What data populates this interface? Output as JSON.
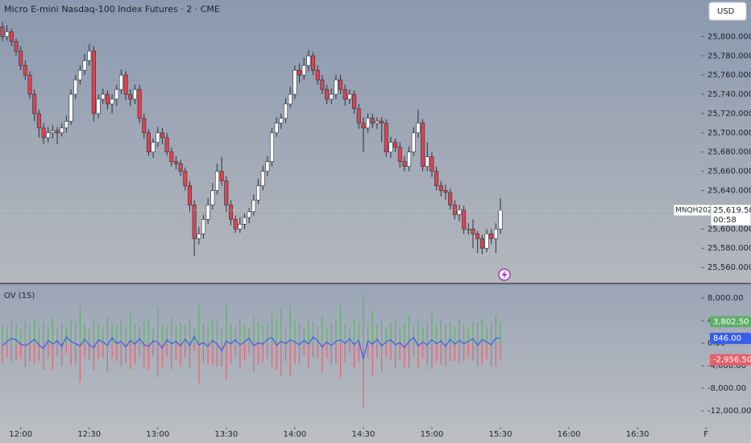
{
  "header": {
    "title": "Micro E-mini Nasdaq-100 Index Futures · 2 · CME",
    "currency": "USD"
  },
  "chart_data": [
    {
      "type": "candlestick",
      "symbol": "MNQH2026",
      "countdown": "00:58",
      "last_label": "25,619.50",
      "up_color": "#ffffff",
      "down_color": "#e0424f",
      "open": [
        25810,
        25800,
        25805,
        25795,
        25785,
        25770,
        25760,
        25740,
        25720,
        25705,
        25695,
        25700,
        25702,
        25700,
        25705,
        25712,
        25740,
        25755,
        25765,
        25775,
        25785,
        25720,
        25735,
        25740,
        25730,
        25735,
        25745,
        25760,
        25740,
        25735,
        25745,
        25715,
        25700,
        25680,
        25690,
        25700,
        25695,
        25680,
        25670,
        25668,
        25660,
        25645,
        25625,
        25590,
        25595,
        25610,
        25625,
        25640,
        25660,
        25650,
        25625,
        25610,
        25600,
        25605,
        25612,
        25618,
        25630,
        25645,
        25660,
        25670,
        25700,
        25710,
        25715,
        25730,
        25740,
        25765,
        25760,
        25770,
        25780,
        25765,
        25755,
        25745,
        25735,
        25740,
        25755,
        25745,
        25735,
        25740,
        25725,
        25710,
        25705,
        25715,
        25710,
        25712,
        25710,
        25680,
        25690,
        25685,
        25670,
        25665,
        25680,
        25700,
        25710,
        25665,
        25675,
        25660,
        25645,
        25640,
        25638,
        25625,
        25615,
        25620,
        25600,
        25600,
        25595,
        25590,
        25580,
        25595,
        25590,
        25600
      ],
      "high": [
        25815,
        25812,
        25808,
        25798,
        25790,
        25775,
        25764,
        25745,
        25724,
        25710,
        25706,
        25708,
        25706,
        25710,
        25718,
        25745,
        25760,
        25770,
        25782,
        25792,
        25790,
        25740,
        25746,
        25744,
        25740,
        25750,
        25766,
        25764,
        25745,
        25750,
        25750,
        25720,
        25704,
        25694,
        25706,
        25705,
        25700,
        25685,
        25676,
        25672,
        25664,
        25650,
        25630,
        25602,
        25615,
        25632,
        25648,
        25668,
        25675,
        25655,
        25630,
        25614,
        25612,
        25616,
        25622,
        25636,
        25652,
        25666,
        25676,
        25705,
        25716,
        25720,
        25736,
        25748,
        25770,
        25772,
        25778,
        25786,
        25784,
        25770,
        25760,
        25750,
        25746,
        25760,
        25760,
        25750,
        25745,
        25744,
        25730,
        25716,
        25720,
        25720,
        25716,
        25716,
        25714,
        25696,
        25694,
        25690,
        25676,
        25686,
        25706,
        25724,
        25714,
        25690,
        25680,
        25665,
        25650,
        25646,
        25642,
        25630,
        25625,
        25624,
        25606,
        25610,
        25598,
        25594,
        25600,
        25600,
        25606,
        25632
      ],
      "low": [
        25795,
        25796,
        25790,
        25780,
        25765,
        25755,
        25735,
        25712,
        25695,
        25688,
        25690,
        25694,
        25688,
        25696,
        25700,
        25708,
        25735,
        25750,
        25760,
        25770,
        25712,
        25715,
        25730,
        25724,
        25720,
        25728,
        25740,
        25734,
        25728,
        25730,
        25710,
        25694,
        25676,
        25674,
        25685,
        25688,
        25676,
        25665,
        25662,
        25655,
        25640,
        25618,
        25572,
        25584,
        25590,
        25605,
        25620,
        25636,
        25645,
        25618,
        25604,
        25596,
        25596,
        25600,
        25606,
        25614,
        25626,
        25640,
        25655,
        25665,
        25696,
        25704,
        25710,
        25726,
        25735,
        25752,
        25755,
        25764,
        25760,
        25750,
        25740,
        25730,
        25730,
        25735,
        25740,
        25728,
        25730,
        25720,
        25704,
        25680,
        25700,
        25705,
        25704,
        25690,
        25675,
        25674,
        25680,
        25664,
        25660,
        25660,
        25676,
        25695,
        25660,
        25660,
        25654,
        25640,
        25634,
        25630,
        25620,
        25610,
        25608,
        25595,
        25594,
        25580,
        25575,
        25574,
        25576,
        25584,
        25575,
        25595
      ],
      "close": [
        25800,
        25805,
        25795,
        25785,
        25770,
        25760,
        25740,
        25720,
        25705,
        25695,
        25700,
        25702,
        25700,
        25705,
        25712,
        25740,
        25755,
        25765,
        25775,
        25785,
        25720,
        25735,
        25740,
        25730,
        25735,
        25745,
        25760,
        25740,
        25735,
        25745,
        25715,
        25700,
        25680,
        25690,
        25700,
        25695,
        25680,
        25670,
        25668,
        25660,
        25645,
        25625,
        25590,
        25595,
        25610,
        25625,
        25640,
        25660,
        25650,
        25625,
        25610,
        25600,
        25605,
        25612,
        25618,
        25630,
        25645,
        25660,
        25670,
        25700,
        25710,
        25715,
        25730,
        25740,
        25765,
        25760,
        25770,
        25780,
        25765,
        25755,
        25745,
        25735,
        25740,
        25755,
        25745,
        25735,
        25740,
        25725,
        25710,
        25705,
        25715,
        25710,
        25712,
        25710,
        25680,
        25690,
        25685,
        25670,
        25665,
        25680,
        25700,
        25710,
        25665,
        25675,
        25660,
        25645,
        25640,
        25638,
        25625,
        25615,
        25620,
        25600,
        25600,
        25595,
        25590,
        25580,
        25595,
        25590,
        25600,
        25619.5
      ],
      "ylim": [
        25545,
        25838
      ],
      "yticks": [
        {
          "value": 25560,
          "label": "25,560.000"
        },
        {
          "value": 25580,
          "label": "25,580.000"
        },
        {
          "value": 25600,
          "label": "25,600.000"
        },
        {
          "value": 25620,
          "label": "25,620.000"
        },
        {
          "value": 25640,
          "label": "25,640.000"
        },
        {
          "value": 25660,
          "label": "25,660.000"
        },
        {
          "value": 25680,
          "label": "25,680.000"
        },
        {
          "value": 25700,
          "label": "25,700.000"
        },
        {
          "value": 25720,
          "label": "25,720.000"
        },
        {
          "value": 25740,
          "label": "25,740.000"
        },
        {
          "value": 25760,
          "label": "25,760.000"
        },
        {
          "value": 25780,
          "label": "25,780.000"
        },
        {
          "value": 25800,
          "label": "25,800.000"
        }
      ],
      "xticks": [
        {
          "value": 4,
          "label": "12:00"
        },
        {
          "value": 19,
          "label": "12:30"
        },
        {
          "value": 34,
          "label": "13:00"
        },
        {
          "value": 49,
          "label": "13:30"
        },
        {
          "value": 64,
          "label": "14:00"
        },
        {
          "value": 79,
          "label": "14:30"
        },
        {
          "value": 94,
          "label": "15:00"
        },
        {
          "value": 109,
          "label": "15:30"
        },
        {
          "value": 124,
          "label": "16:00"
        },
        {
          "value": 139,
          "label": "16:30"
        },
        {
          "value": 154,
          "label": "F"
        }
      ]
    },
    {
      "type": "volume-delta",
      "title": "OV (1S)",
      "series": [
        {
          "type": "bar",
          "color": "#5fae6a",
          "last_label": "3,802.50",
          "values": [
            3200,
            2800,
            4100,
            3600,
            2500,
            3900,
            3300,
            4400,
            2900,
            3700,
            3100,
            4600,
            2700,
            3500,
            3000,
            4200,
            3800,
            6400,
            3300,
            2600,
            4000,
            3400,
            2800,
            4700,
            3600,
            3100,
            4300,
            2900,
            5200,
            3500,
            3000,
            3800,
            4100,
            2700,
            6200,
            3400,
            2900,
            4500,
            3200,
            3700,
            3300,
            4000,
            2600,
            6800,
            3500,
            3100,
            4400,
            3900,
            2800,
            6900,
            3600,
            3000,
            4200,
            3300,
            2700,
            4600,
            3800,
            3200,
            3500,
            5100,
            4300,
            6100,
            3100,
            6500,
            3900,
            3400,
            2800,
            4100,
            3600,
            3000,
            4700,
            2900,
            3500,
            4000,
            6700,
            3300,
            2600,
            4200,
            3800,
            8600,
            3100,
            5600,
            3400,
            4500,
            2800,
            3700,
            4100,
            3000,
            3600,
            4800,
            3200,
            4000,
            2900,
            3500,
            5300,
            3100,
            4200,
            3400,
            3800,
            3000,
            4100,
            3300,
            2700,
            3900,
            3600,
            4500,
            3000,
            3800,
            5000,
            3802.5
          ]
        },
        {
          "type": "bar",
          "color": "#e5606a",
          "last_label": "-2,956.50",
          "values": [
            -3700,
            -2500,
            -3300,
            -3000,
            -2700,
            -4300,
            -3300,
            -3700,
            -3200,
            -4700,
            -2600,
            -4800,
            -2300,
            -4100,
            -1900,
            -3900,
            -3900,
            -6900,
            -2600,
            -2900,
            -4800,
            -2800,
            -2600,
            -5100,
            -2600,
            -3200,
            -4000,
            -3600,
            -4700,
            -3700,
            -2200,
            -4100,
            -4700,
            -2300,
            -6000,
            -4300,
            -2300,
            -4600,
            -2900,
            -4200,
            -2600,
            -4400,
            -1400,
            -7100,
            -3400,
            -3700,
            -3900,
            -4100,
            -4200,
            -6500,
            -3700,
            -2400,
            -4500,
            -3100,
            -1800,
            -5100,
            -3700,
            -3400,
            -2800,
            -4100,
            -4700,
            -5800,
            -3200,
            -5900,
            -3700,
            -3700,
            -2300,
            -4300,
            -2500,
            -2600,
            -5400,
            -2700,
            -3900,
            -3700,
            -6100,
            -3400,
            -1800,
            -4500,
            -3300,
            -11400,
            -2700,
            -5800,
            -2700,
            -5000,
            -2600,
            -3100,
            -4400,
            -2900,
            -4400,
            -4500,
            -2200,
            -4500,
            -2700,
            -3800,
            -4700,
            -3200,
            -3800,
            -4000,
            -3100,
            -3200,
            -3600,
            -3400,
            -2400,
            -3100,
            -4000,
            -3900,
            -2800,
            -4100,
            -4100,
            -2956.5
          ]
        },
        {
          "type": "line",
          "color": "#3a5ee8",
          "last_label": "846.00",
          "values": [
            -500,
            300,
            800,
            600,
            -200,
            -400,
            0,
            700,
            -300,
            -1000,
            500,
            -200,
            400,
            -600,
            1100,
            300,
            -100,
            -500,
            700,
            -300,
            -800,
            600,
            200,
            -400,
            1000,
            -100,
            300,
            -700,
            500,
            -200,
            800,
            -300,
            -600,
            400,
            200,
            -900,
            600,
            -100,
            300,
            -500,
            700,
            -400,
            1200,
            -300,
            100,
            -600,
            500,
            -200,
            -1400,
            400,
            -100,
            600,
            -300,
            200,
            900,
            -500,
            100,
            -200,
            700,
            1000,
            -400,
            300,
            -100,
            600,
            200,
            -300,
            500,
            -200,
            1100,
            400,
            -700,
            200,
            -400,
            300,
            600,
            -100,
            800,
            -300,
            500,
            -2800,
            400,
            -200,
            700,
            -500,
            200,
            600,
            -300,
            100,
            -800,
            300,
            1000,
            -500,
            200,
            -300,
            600,
            -100,
            400,
            -600,
            700,
            -200,
            500,
            -100,
            300,
            800,
            -400,
            600,
            200,
            -300,
            900,
            846
          ]
        }
      ],
      "ylim": [
        -14140,
        10570
      ],
      "yticks": [
        {
          "value": 8000,
          "label": "8,000.00"
        },
        {
          "value": 4000,
          "label": "4,000.00"
        },
        {
          "value": 0,
          "label": "0.00"
        },
        {
          "value": -4000,
          "label": "-4,000.00"
        },
        {
          "value": -8000,
          "label": "-8,000.00"
        },
        {
          "value": -12000,
          "label": "-12,000.00"
        }
      ]
    }
  ]
}
